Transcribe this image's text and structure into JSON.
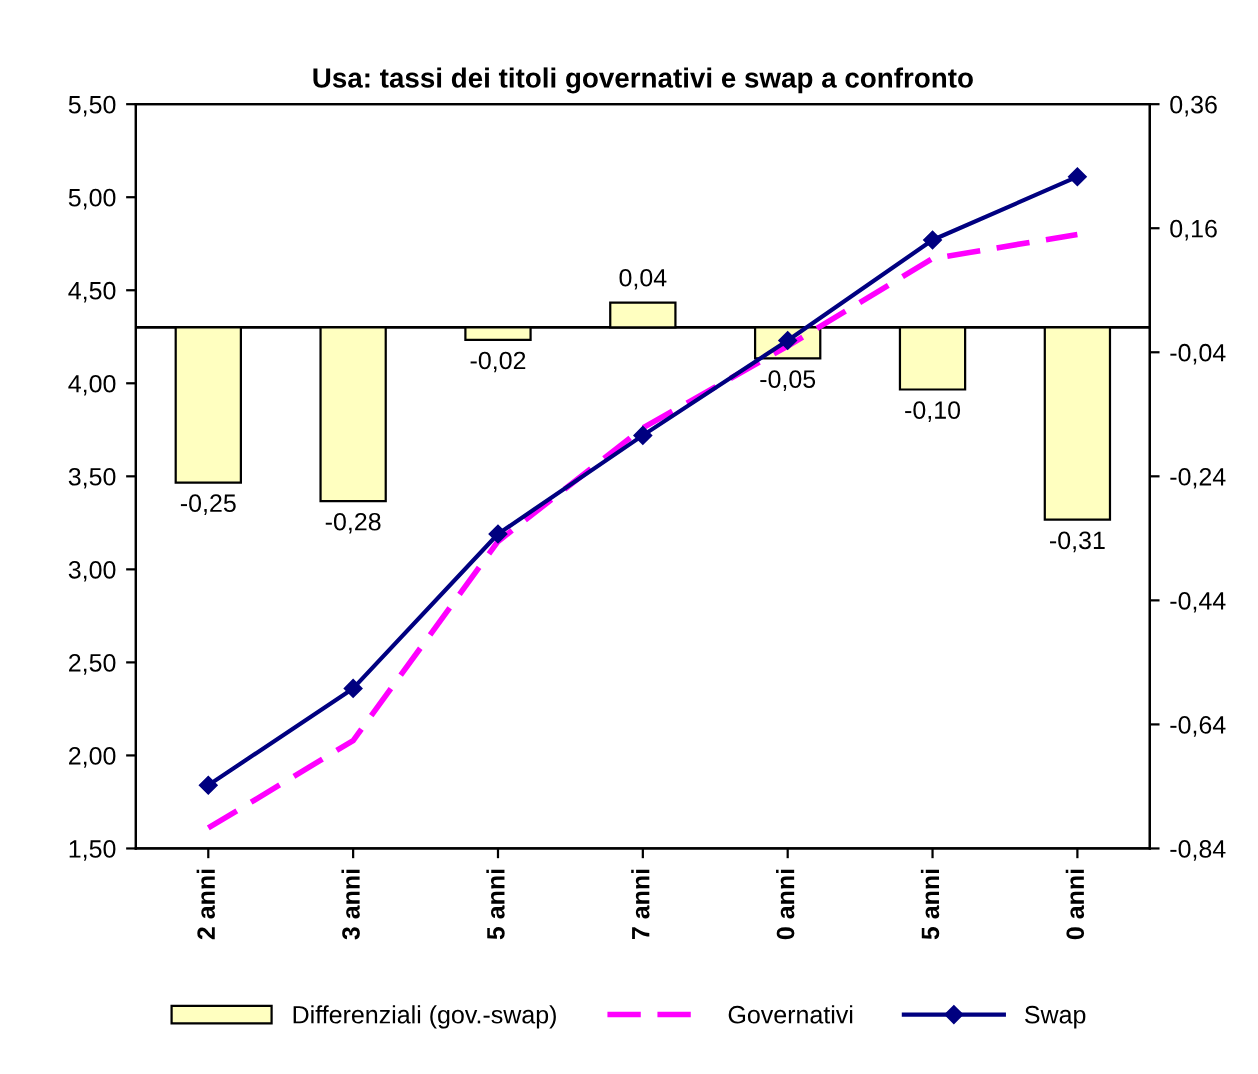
{
  "chart_data": {
    "type": "line",
    "title": "Usa: tassi dei titoli governativi e swap a confronto",
    "categories": [
      "2 anni",
      "3 anni",
      "5 anni",
      "7 anni",
      "0 anni",
      "5 anni",
      "0 anni"
    ],
    "series": [
      {
        "name": "Differenziali (gov.-swap)",
        "type": "bar",
        "axis": "y2",
        "color": "#ffffc0",
        "values": [
          -0.25,
          -0.28,
          -0.02,
          0.04,
          -0.05,
          -0.1,
          -0.31
        ],
        "value_labels": [
          "-0,25",
          "-0,28",
          "-0,02",
          "0,04",
          "-0,05",
          "-0,10",
          "-0,31"
        ]
      },
      {
        "name": "Governativi",
        "color": "#ff00ff",
        "line_style": "dashed",
        "marker": "none",
        "values": [
          1.61,
          2.08,
          3.15,
          3.76,
          4.2,
          4.67,
          4.8
        ]
      },
      {
        "name": "Swap",
        "color": "#000080",
        "line_style": "solid",
        "marker": "diamond",
        "values": [
          1.84,
          2.36,
          3.19,
          3.72,
          4.23,
          4.77,
          5.11
        ]
      }
    ],
    "ylim": [
      1.5,
      5.5
    ],
    "yticks": [
      {
        "value": 1.5,
        "label": "1,50"
      },
      {
        "value": 2.0,
        "label": "2,00"
      },
      {
        "value": 2.5,
        "label": "2,50"
      },
      {
        "value": 3.0,
        "label": "3,00"
      },
      {
        "value": 3.5,
        "label": "3,50"
      },
      {
        "value": 4.0,
        "label": "4,00"
      },
      {
        "value": 4.5,
        "label": "4,50"
      },
      {
        "value": 5.0,
        "label": "5,00"
      },
      {
        "value": 5.5,
        "label": "5,50"
      }
    ],
    "y2lim": [
      -0.84,
      0.36
    ],
    "y2ticks": [
      {
        "value": -0.84,
        "label": "-0,84"
      },
      {
        "value": -0.64,
        "label": "-0,64"
      },
      {
        "value": -0.44,
        "label": "-0,44"
      },
      {
        "value": -0.24,
        "label": "-0,24"
      },
      {
        "value": -0.04,
        "label": "-0,04"
      },
      {
        "value": 0.16,
        "label": "0,16"
      },
      {
        "value": 0.36,
        "label": "0,36"
      }
    ],
    "ref_lines": [
      {
        "axis": "y2",
        "value": 0,
        "color": "#000000"
      }
    ],
    "legend": "bottom",
    "grid": false
  }
}
